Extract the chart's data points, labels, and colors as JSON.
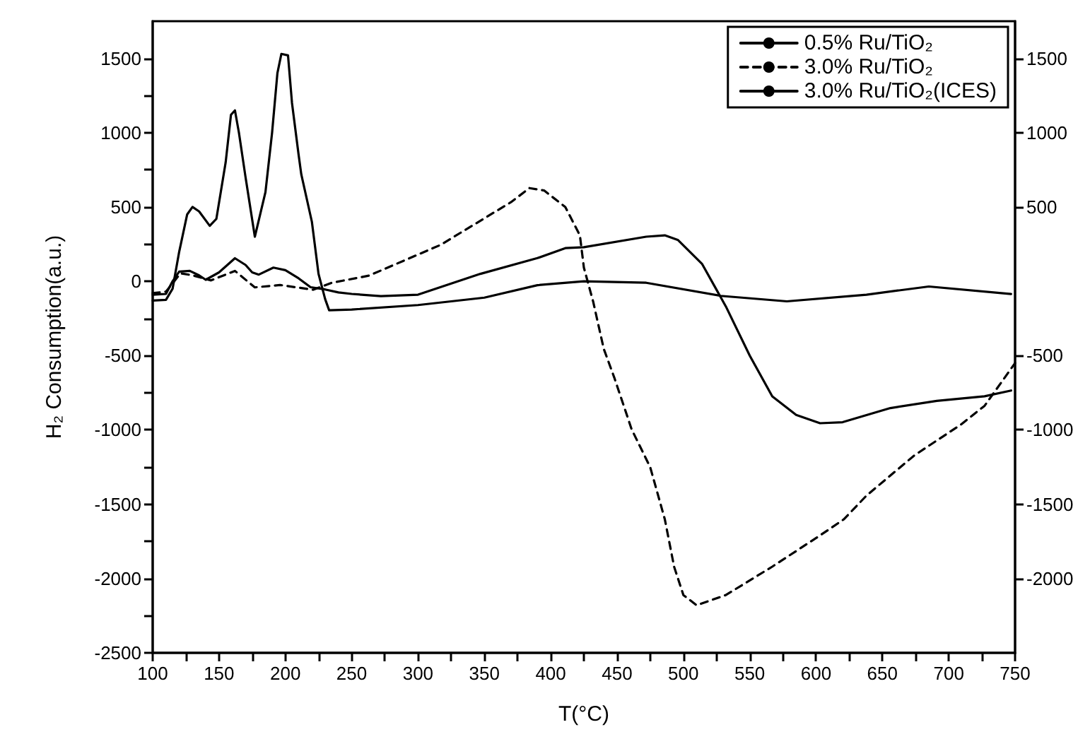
{
  "chart_data": {
    "type": "line",
    "xlabel": "T(°C)",
    "ylabel": "H₂ Consumption(a.u.)",
    "xlim": [
      100,
      750
    ],
    "xticks": [
      100,
      {
        "value": 125,
        "label": null
      },
      150,
      {
        "value": 175,
        "label": null
      },
      200,
      {
        "value": 225,
        "label": null
      },
      250,
      {
        "value": 275,
        "label": null
      },
      300,
      {
        "value": 325,
        "label": null
      },
      350,
      {
        "value": 375,
        "label": null
      },
      400,
      {
        "value": 425,
        "label": null
      },
      450,
      {
        "value": 475,
        "label": null
      },
      500,
      {
        "value": 525,
        "label": null
      },
      550,
      {
        "value": 575,
        "label": null
      },
      600,
      {
        "value": 625,
        "label": null
      },
      650,
      {
        "value": 675,
        "label": null
      },
      700,
      {
        "value": 725,
        "label": null
      },
      750
    ],
    "ylim": [
      -2500,
      1750
    ],
    "yticks": [
      -2500,
      {
        "value": -2250,
        "label": null
      },
      -2000,
      {
        "value": -1750,
        "label": null
      },
      -1500,
      {
        "value": -1250,
        "label": null
      },
      -1000,
      {
        "value": -750,
        "label": null
      },
      -500,
      {
        "value": -250,
        "label": null
      },
      0,
      {
        "value": 250,
        "label": null
      },
      500,
      {
        "value": 750,
        "label": null
      },
      1000,
      {
        "value": 1250,
        "label": null
      },
      1500
    ],
    "y2lim": [
      -2500,
      1750
    ],
    "y2ticks": [
      -2000,
      -1500,
      -1000,
      -500,
      500,
      1000,
      1500
    ],
    "grid": false,
    "legend": "top right",
    "marker": "none",
    "series": [
      {
        "name": "0.5% Ru/TiO₂",
        "color": "#000000",
        "line_style": "solid",
        "x": [
          100,
          110,
          115,
          120,
          128,
          135,
          140,
          150,
          162,
          170,
          175,
          180,
          191,
          200,
          210,
          219,
          230,
          240,
          250,
          272,
          300,
          347,
          390,
          411,
          425,
          472,
          486,
          496,
          514,
          532,
          550,
          567,
          585,
          603,
          620,
          656,
          691,
          727,
          747
        ],
        "values": [
          -90,
          -85,
          0,
          65,
          70,
          40,
          10,
          60,
          155,
          110,
          60,
          45,
          92,
          75,
          20,
          -40,
          -55,
          -75,
          -85,
          -100,
          -90,
          50,
          156,
          223,
          229,
          300,
          309,
          277,
          118,
          -169,
          -500,
          -774,
          -899,
          -955,
          -948,
          -853,
          -805,
          -774,
          -735
        ]
      },
      {
        "name": "3.0% Ru/TiO₂",
        "color": "#000000",
        "line_style": "dashed",
        "x": [
          100,
          110,
          121,
          130,
          144,
          162,
          177,
          196,
          221,
          235,
          263,
          317,
          370,
          384,
          395,
          411,
          422,
          425,
          432,
          440,
          448,
          461,
          475,
          486,
          493,
          500,
          510,
          532,
          567,
          603,
          621,
          638,
          674,
          709,
          727,
          745,
          750
        ],
        "values": [
          -80,
          -70,
          54,
          40,
          6,
          70,
          -41,
          -25,
          -57,
          -10,
          38,
          245,
          532,
          627,
          611,
          500,
          309,
          92,
          -137,
          -455,
          -650,
          -996,
          -1251,
          -1601,
          -1920,
          -2111,
          -2180,
          -2111,
          -1920,
          -1710,
          -1601,
          -1442,
          -1172,
          -965,
          -838,
          -613,
          -550
        ]
      },
      {
        "name": "3.0% Ru/TiO₂(ICES)",
        "color": "#000000",
        "line_style": "solid",
        "x": [
          100,
          110,
          115,
          120,
          126,
          130,
          135,
          143,
          148,
          155,
          159,
          162,
          165,
          170,
          177,
          185,
          190,
          194,
          197,
          202,
          205,
          210,
          212,
          220,
          225,
          230,
          233,
          250,
          300,
          350,
          390,
          425,
          472,
          528,
          578,
          638,
          685,
          747
        ],
        "values": [
          -130,
          -125,
          -50,
          200,
          450,
          500,
          470,
          373,
          420,
          800,
          1120,
          1150,
          1000,
          700,
          300,
          600,
          1000,
          1400,
          1530,
          1520,
          1200,
          850,
          720,
          400,
          50,
          -120,
          -195,
          -190,
          -160,
          -110,
          -26,
          0,
          -10,
          -98,
          -135,
          -90,
          -35,
          -86
        ]
      }
    ]
  }
}
